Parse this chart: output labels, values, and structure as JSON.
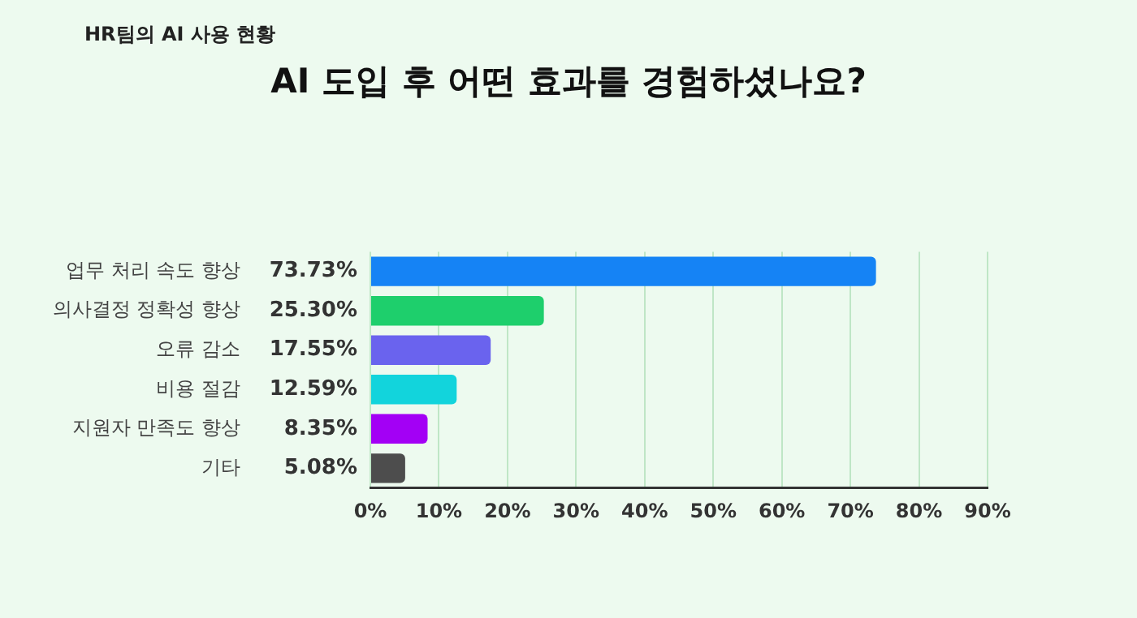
{
  "chart_data": {
    "type": "bar",
    "orientation": "horizontal",
    "subtitle": "HR팀의 AI 사용 현황",
    "title": "AI 도입 후 어떤 효과를 경험하셨나요?",
    "categories": [
      "업무 처리 속도 향상",
      "의사결정 정확성 향상",
      "오류 감소",
      "비용 절감",
      "지원자 만족도 향상",
      "기타"
    ],
    "values": [
      73.73,
      25.3,
      17.55,
      12.59,
      8.35,
      5.08
    ],
    "value_labels": [
      "73.73%",
      "25.30%",
      "17.55%",
      "12.59%",
      "8.35%",
      "5.08%"
    ],
    "colors": [
      "#1583f5",
      "#1ecf6c",
      "#6a63ee",
      "#12d4dc",
      "#a300f5",
      "#4d4d4d"
    ],
    "xlim": [
      0,
      90
    ],
    "xticks": [
      {
        "value": 0,
        "label": "0%"
      },
      {
        "value": 10,
        "label": "10%"
      },
      {
        "value": 20,
        "label": "20%"
      },
      {
        "value": 30,
        "label": "30%"
      },
      {
        "value": 40,
        "label": "40%"
      },
      {
        "value": 50,
        "label": "50%"
      },
      {
        "value": 60,
        "label": "60%"
      },
      {
        "value": 70,
        "label": "70%"
      },
      {
        "value": 80,
        "label": "80%"
      },
      {
        "value": 90,
        "label": "90%"
      }
    ],
    "grid": "x",
    "legend": false
  }
}
